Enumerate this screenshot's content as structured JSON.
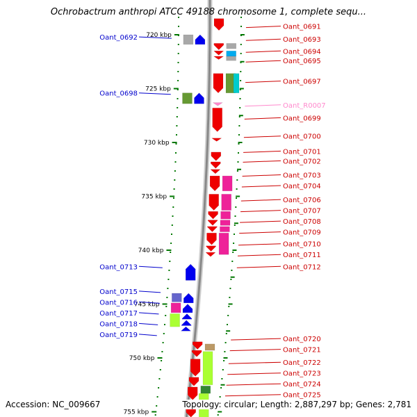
{
  "title": "Ochrobactrum anthropi ATCC 49188 chromosome 1, complete sequ...",
  "accession": "Accession: NC_009667",
  "topology": "Topology: circular; Length: 2,887,297 bp; Genes: 2,781",
  "colors": {
    "label_left": "#0000cc",
    "label_right": "#cc0000",
    "label_rna": "#ff88cc",
    "tick": "#007700",
    "backbone": "#888888"
  },
  "kbp_ticks": [
    {
      "label": "720 kbp",
      "kbp": 720
    },
    {
      "label": "725 kbp",
      "kbp": 725
    },
    {
      "label": "730 kbp",
      "kbp": 730
    },
    {
      "label": "735 kbp",
      "kbp": 735
    },
    {
      "label": "740 kbp",
      "kbp": 740
    },
    {
      "label": "745 kbp",
      "kbp": 745
    },
    {
      "label": "750 kbp",
      "kbp": 750
    },
    {
      "label": "755 kbp",
      "kbp": 755
    }
  ],
  "left_labels": [
    {
      "name": "Oant_0692",
      "kbp": 720.2
    },
    {
      "name": "Oant_0698",
      "kbp": 725.4
    },
    {
      "name": "Oant_0713",
      "kbp": 741.5
    },
    {
      "name": "Oant_0715",
      "kbp": 743.8
    },
    {
      "name": "Oant_0716",
      "kbp": 744.8
    },
    {
      "name": "Oant_0717",
      "kbp": 745.8
    },
    {
      "name": "Oant_0718",
      "kbp": 746.8
    },
    {
      "name": "Oant_0719",
      "kbp": 747.8
    }
  ],
  "right_labels": [
    {
      "name": "Oant_0691",
      "kbp": 719.2,
      "kind": "gene"
    },
    {
      "name": "Oant_0693",
      "kbp": 720.4,
      "kind": "gene"
    },
    {
      "name": "Oant_0694",
      "kbp": 721.5,
      "kind": "gene"
    },
    {
      "name": "Oant_0695",
      "kbp": 722.4,
      "kind": "gene"
    },
    {
      "name": "Oant_0697",
      "kbp": 724.3,
      "kind": "gene"
    },
    {
      "name": "Oant_R0007",
      "kbp": 726.5,
      "kind": "rna"
    },
    {
      "name": "Oant_0699",
      "kbp": 727.7,
      "kind": "gene"
    },
    {
      "name": "Oant_0700",
      "kbp": 729.4,
      "kind": "gene"
    },
    {
      "name": "Oant_0701",
      "kbp": 730.8,
      "kind": "gene"
    },
    {
      "name": "Oant_0702",
      "kbp": 731.7,
      "kind": "gene"
    },
    {
      "name": "Oant_0703",
      "kbp": 733.0,
      "kind": "gene"
    },
    {
      "name": "Oant_0704",
      "kbp": 734.0,
      "kind": "gene"
    },
    {
      "name": "Oant_0706",
      "kbp": 735.3,
      "kind": "gene"
    },
    {
      "name": "Oant_0707",
      "kbp": 736.3,
      "kind": "gene"
    },
    {
      "name": "Oant_0708",
      "kbp": 737.3,
      "kind": "gene"
    },
    {
      "name": "Oant_0709",
      "kbp": 738.3,
      "kind": "gene"
    },
    {
      "name": "Oant_0710",
      "kbp": 739.4,
      "kind": "gene"
    },
    {
      "name": "Oant_0711",
      "kbp": 740.4,
      "kind": "gene"
    },
    {
      "name": "Oant_0712",
      "kbp": 741.5,
      "kind": "gene"
    },
    {
      "name": "Oant_0720",
      "kbp": 748.2,
      "kind": "gene"
    },
    {
      "name": "Oant_0721",
      "kbp": 749.2,
      "kind": "gene"
    },
    {
      "name": "Oant_0722",
      "kbp": 750.4,
      "kind": "gene"
    },
    {
      "name": "Oant_0723",
      "kbp": 751.4,
      "kind": "gene"
    },
    {
      "name": "Oant_0724",
      "kbp": 752.4,
      "kind": "gene"
    },
    {
      "name": "Oant_0725",
      "kbp": 753.4,
      "kind": "gene"
    }
  ],
  "features": [
    {
      "name": "Oant_0691",
      "lane": "fwd",
      "start": 718.5,
      "end": 719.6,
      "dir": "down",
      "color": "#ee0000"
    },
    {
      "name": "Oant_0692",
      "lane": "rev2",
      "start": 720.0,
      "end": 720.9,
      "dir": "none",
      "color": "#a8a8a8"
    },
    {
      "name": "Oant_0692-arrow",
      "lane": "rev1",
      "start": 720.0,
      "end": 720.9,
      "dir": "up",
      "color": "#0000ee"
    },
    {
      "name": "Oant_0693",
      "lane": "fwd",
      "start": 720.8,
      "end": 721.4,
      "dir": "down",
      "color": "#ee0000"
    },
    {
      "name": "Oant_0693-b",
      "lane": "fwd2",
      "start": 720.8,
      "end": 721.3,
      "dir": "none",
      "color": "#a8a8a8"
    },
    {
      "name": "Oant_0694",
      "lane": "fwd",
      "start": 721.5,
      "end": 721.9,
      "dir": "down",
      "color": "#ee0000"
    },
    {
      "name": "Oant_0694-b",
      "lane": "fwd2",
      "start": 721.5,
      "end": 722.0,
      "dir": "none",
      "color": "#00aaee"
    },
    {
      "name": "Oant_0695",
      "lane": "fwd",
      "start": 722.0,
      "end": 722.3,
      "dir": "down",
      "color": "#ee0000"
    },
    {
      "name": "Oant_0695-b",
      "lane": "fwd2",
      "start": 722.0,
      "end": 722.4,
      "dir": "none",
      "color": "#a8a8a8"
    },
    {
      "name": "Oant_0697",
      "lane": "fwd",
      "start": 723.6,
      "end": 725.4,
      "dir": "down",
      "color": "#ee0000"
    },
    {
      "name": "Oant_0697-b",
      "lane": "fwd2",
      "start": 723.6,
      "end": 725.4,
      "dir": "none",
      "color": "#669933"
    },
    {
      "name": "Oant_0697-c",
      "lane": "fwd3",
      "start": 723.6,
      "end": 725.4,
      "dir": "none",
      "color": "#00cccc"
    },
    {
      "name": "Oant_0698",
      "lane": "rev2",
      "start": 725.4,
      "end": 726.4,
      "dir": "none",
      "color": "#669933"
    },
    {
      "name": "Oant_0698-arrow",
      "lane": "rev1",
      "start": 725.4,
      "end": 726.4,
      "dir": "up",
      "color": "#0000ee"
    },
    {
      "name": "Oant_R0007",
      "lane": "fwd",
      "start": 726.3,
      "end": 726.6,
      "dir": "down",
      "color": "#ff88cc"
    },
    {
      "name": "Oant_0699",
      "lane": "fwd",
      "start": 726.8,
      "end": 729.0,
      "dir": "down",
      "color": "#ee0000"
    },
    {
      "name": "Oant_0700",
      "lane": "fwd",
      "start": 729.6,
      "end": 729.9,
      "dir": "down",
      "color": "#ee0000"
    },
    {
      "name": "Oant_0701",
      "lane": "fwd",
      "start": 730.9,
      "end": 731.7,
      "dir": "down",
      "color": "#ee0000"
    },
    {
      "name": "Oant_0702",
      "lane": "fwd",
      "start": 731.8,
      "end": 732.4,
      "dir": "down",
      "color": "#ee0000"
    },
    {
      "name": "Oant_0703",
      "lane": "fwd",
      "start": 732.5,
      "end": 732.9,
      "dir": "down",
      "color": "#ee0000"
    },
    {
      "name": "Oant_0704",
      "lane": "fwd",
      "start": 733.1,
      "end": 734.5,
      "dir": "down",
      "color": "#ee0000"
    },
    {
      "name": "Oant_0704-b",
      "lane": "fwd2",
      "start": 733.1,
      "end": 734.5,
      "dir": "none",
      "color": "#ee2299"
    },
    {
      "name": "Oant_0706",
      "lane": "fwd",
      "start": 734.8,
      "end": 736.3,
      "dir": "down",
      "color": "#ee0000"
    },
    {
      "name": "Oant_0706-b",
      "lane": "fwd2",
      "start": 734.8,
      "end": 736.3,
      "dir": "none",
      "color": "#ee2299"
    },
    {
      "name": "Oant_0707",
      "lane": "fwd",
      "start": 736.4,
      "end": 737.1,
      "dir": "down",
      "color": "#ee0000"
    },
    {
      "name": "Oant_0707-b",
      "lane": "fwd2",
      "start": 736.4,
      "end": 737.1,
      "dir": "none",
      "color": "#ee2299"
    },
    {
      "name": "Oant_0708",
      "lane": "fwd",
      "start": 737.2,
      "end": 737.7,
      "dir": "down",
      "color": "#ee0000"
    },
    {
      "name": "Oant_0708-b",
      "lane": "fwd2",
      "start": 737.2,
      "end": 737.7,
      "dir": "none",
      "color": "#ee2299"
    },
    {
      "name": "Oant_0709",
      "lane": "fwd",
      "start": 737.8,
      "end": 738.3,
      "dir": "down",
      "color": "#ee0000"
    },
    {
      "name": "Oant_0709-b",
      "lane": "fwd2",
      "start": 737.8,
      "end": 738.3,
      "dir": "none",
      "color": "#ee2299"
    },
    {
      "name": "Oant_0710",
      "lane": "fwd",
      "start": 738.4,
      "end": 739.5,
      "dir": "down",
      "color": "#ee0000"
    },
    {
      "name": "Oant_0710-b",
      "lane": "fwd2",
      "start": 738.4,
      "end": 740.4,
      "dir": "none",
      "color": "#ee2299"
    },
    {
      "name": "Oant_0711",
      "lane": "fwd",
      "start": 739.6,
      "end": 740.1,
      "dir": "down",
      "color": "#ee0000"
    },
    {
      "name": "Oant_0712",
      "lane": "fwd",
      "start": 740.2,
      "end": 740.6,
      "dir": "down",
      "color": "#ee0000"
    },
    {
      "name": "Oant_0713",
      "lane": "rev1",
      "start": 741.3,
      "end": 742.8,
      "dir": "up",
      "color": "#0000ee"
    },
    {
      "name": "Oant_0715",
      "lane": "rev2",
      "start": 744.0,
      "end": 744.8,
      "dir": "none",
      "color": "#6666cc"
    },
    {
      "name": "Oant_0715-arrow",
      "lane": "rev1",
      "start": 744.0,
      "end": 744.9,
      "dir": "up",
      "color": "#0000ee"
    },
    {
      "name": "Oant_0716",
      "lane": "rev2",
      "start": 744.9,
      "end": 745.8,
      "dir": "none",
      "color": "#ee2299"
    },
    {
      "name": "Oant_0716-arrow",
      "lane": "rev1",
      "start": 745.0,
      "end": 745.8,
      "dir": "up",
      "color": "#0000ee"
    },
    {
      "name": "Oant_0717",
      "lane": "rev2",
      "start": 745.9,
      "end": 747.1,
      "dir": "none",
      "color": "#aaff33"
    },
    {
      "name": "Oant_0717-arrow",
      "lane": "rev1",
      "start": 745.9,
      "end": 746.4,
      "dir": "up",
      "color": "#0000ee"
    },
    {
      "name": "Oant_0718",
      "lane": "rev1",
      "start": 746.5,
      "end": 747.0,
      "dir": "up",
      "color": "#0000ee"
    },
    {
      "name": "Oant_0719",
      "lane": "rev1",
      "start": 747.1,
      "end": 747.5,
      "dir": "up",
      "color": "#0000ee"
    },
    {
      "name": "Oant_0720",
      "lane": "lower-fwd",
      "start": 748.5,
      "end": 749.2,
      "dir": "down",
      "color": "#ee0000"
    },
    {
      "name": "Oant_0720-b",
      "lane": "lower-fwd2",
      "start": 748.7,
      "end": 749.3,
      "dir": "none",
      "color": "#bb9966"
    },
    {
      "name": "Oant_0721",
      "lane": "lower-fwd",
      "start": 749.3,
      "end": 749.9,
      "dir": "down",
      "color": "#ee0000"
    },
    {
      "name": "Oant_0721-b",
      "lane": "lower-fwd2",
      "start": 749.4,
      "end": 752.5,
      "dir": "none",
      "color": "#aaff33"
    },
    {
      "name": "Oant_0722",
      "lane": "lower-fwd",
      "start": 750.1,
      "end": 751.7,
      "dir": "down",
      "color": "#ee0000"
    },
    {
      "name": "Oant_0723",
      "lane": "lower-fwd",
      "start": 751.8,
      "end": 752.6,
      "dir": "down",
      "color": "#ee0000"
    },
    {
      "name": "Oant_0724",
      "lane": "lower-fwd",
      "start": 752.7,
      "end": 753.9,
      "dir": "down",
      "color": "#ee0000"
    },
    {
      "name": "Oant_0724-b",
      "lane": "lower-fwd2",
      "start": 752.6,
      "end": 753.3,
      "dir": "none",
      "color": "#338833"
    },
    {
      "name": "Oant_0724-c",
      "lane": "lower-fwd2",
      "start": 753.3,
      "end": 755.5,
      "dir": "none",
      "color": "#aaff33"
    },
    {
      "name": "Oant_0725",
      "lane": "lower-fwd",
      "start": 754.0,
      "end": 755.5,
      "dir": "down",
      "color": "#ee0000"
    }
  ]
}
